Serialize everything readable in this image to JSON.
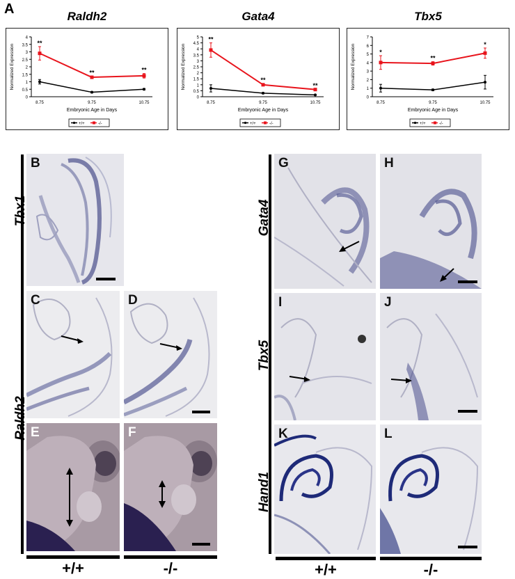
{
  "figure": {
    "panel_a_letter": "A"
  },
  "chart_data": [
    {
      "type": "line",
      "title": "Raldh2",
      "xlabel": "Embryonic Age in Days",
      "ylabel": "Normalized Expression",
      "categories": [
        "8.75",
        "9.75",
        "10.75"
      ],
      "yticks": [
        "0",
        "0.5",
        "1",
        "1.5",
        "2",
        "2.5",
        "3",
        "3.5",
        "4"
      ],
      "ylim": [
        0,
        4
      ],
      "series": [
        {
          "name": "+/+",
          "color": "#000000",
          "values": [
            1.0,
            0.3,
            0.5
          ],
          "err": [
            0.15,
            0.05,
            0.05
          ],
          "sig": [
            "",
            "",
            ""
          ]
        },
        {
          "name": "-/-",
          "color": "#e8141c",
          "values": [
            2.9,
            1.3,
            1.4
          ],
          "err": [
            0.45,
            0.08,
            0.15
          ],
          "sig": [
            "**",
            "**",
            "**"
          ]
        }
      ],
      "legend": "bottom"
    },
    {
      "type": "line",
      "title": "Gata4",
      "xlabel": "Embryonic Age in Days",
      "ylabel": "Normalized Expression",
      "categories": [
        "8.75",
        "9.75",
        "10.75"
      ],
      "yticks": [
        "0",
        "0.5",
        "1",
        "1.5",
        "2",
        "2.5",
        "3",
        "3.5",
        "4",
        "4.5",
        "5"
      ],
      "ylim": [
        0,
        5
      ],
      "series": [
        {
          "name": "+/+",
          "color": "#000000",
          "values": [
            0.7,
            0.3,
            0.15
          ],
          "err": [
            0.3,
            0.05,
            0.03
          ],
          "sig": [
            "",
            "",
            ""
          ]
        },
        {
          "name": "-/-",
          "color": "#e8141c",
          "values": [
            3.9,
            1.0,
            0.6
          ],
          "err": [
            0.6,
            0.1,
            0.05
          ],
          "sig": [
            "**",
            "**",
            "**"
          ]
        }
      ],
      "legend": "bottom"
    },
    {
      "type": "line",
      "title": "Tbx5",
      "xlabel": "Embryonic Age in Days",
      "ylabel": "Normalized Expression",
      "categories": [
        "8.75",
        "9.75",
        "10.75"
      ],
      "yticks": [
        "0",
        "1",
        "2",
        "3",
        "4",
        "5",
        "6",
        "7"
      ],
      "ylim": [
        0,
        7
      ],
      "series": [
        {
          "name": "+/+",
          "color": "#000000",
          "values": [
            1.0,
            0.8,
            1.7
          ],
          "err": [
            0.45,
            0.1,
            0.8
          ],
          "sig": [
            "",
            "",
            ""
          ]
        },
        {
          "name": "-/-",
          "color": "#e8141c",
          "values": [
            4.0,
            3.9,
            5.1
          ],
          "err": [
            0.8,
            0.2,
            0.6
          ],
          "sig": [
            "*",
            "**",
            "*"
          ]
        }
      ],
      "legend": "bottom"
    }
  ],
  "panels": {
    "B": "B",
    "C": "C",
    "D": "D",
    "E": "E",
    "F": "F",
    "G": "G",
    "H": "H",
    "I": "I",
    "J": "J",
    "K": "K",
    "L": "L"
  },
  "gene_labels": {
    "tbx1": "Tbx1",
    "raldh2": "Raldh2",
    "gata4": "Gata4",
    "tbx5": "Tbx5",
    "hand1": "Hand1"
  },
  "genotypes": {
    "left_wt": "+/+",
    "left_ko": "-/-",
    "right_wt": "+/+",
    "right_ko": "-/-"
  },
  "colors": {
    "stain": "#4a4f8c",
    "tissue_bg": "#e4e4ea",
    "whole_mount_bg": "#a89aa4",
    "wt_line": "#000000",
    "ko_line": "#e8141c"
  }
}
